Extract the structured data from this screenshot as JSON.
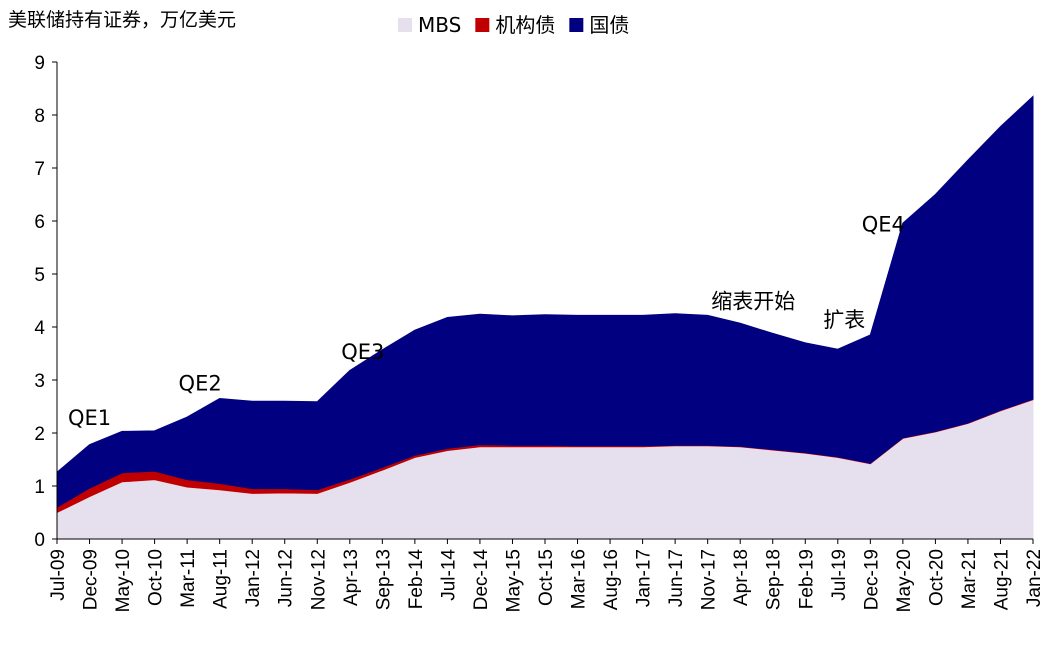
{
  "chart_data": {
    "type": "area",
    "stacked": true,
    "ylabel": "美联储持有证券，万亿美元",
    "ylim": [
      0,
      9
    ],
    "yticks": [
      "0",
      "1",
      "2",
      "3",
      "4",
      "5",
      "6",
      "7",
      "8",
      "9"
    ],
    "legend": {
      "placement": "top-center"
    },
    "grid": false,
    "xticks": [
      "Jul-09",
      "Dec-09",
      "May-10",
      "Oct-10",
      "Mar-11",
      "Aug-11",
      "Jan-12",
      "Jun-12",
      "Nov-12",
      "Apr-13",
      "Sep-13",
      "Feb-14",
      "Jul-14",
      "Dec-14",
      "May-15",
      "Oct-15",
      "Mar-16",
      "Aug-16",
      "Jan-17",
      "Jun-17",
      "Nov-17",
      "Apr-18",
      "Sep-18",
      "Feb-19",
      "Jul-19",
      "Dec-19",
      "May-20",
      "Oct-20",
      "Mar-21",
      "Aug-21",
      "Jan-22"
    ],
    "series": [
      {
        "name": "MBS",
        "color": "#e6e0ee",
        "values": [
          0.5,
          0.8,
          1.08,
          1.12,
          0.98,
          0.93,
          0.86,
          0.87,
          0.86,
          1.07,
          1.3,
          1.54,
          1.67,
          1.74,
          1.74,
          1.74,
          1.74,
          1.74,
          1.74,
          1.76,
          1.76,
          1.74,
          1.68,
          1.62,
          1.54,
          1.42,
          1.9,
          2.02,
          2.18,
          2.42,
          2.63
        ]
      },
      {
        "name": "机构债",
        "color": "#c00000",
        "values": [
          0.1,
          0.16,
          0.17,
          0.16,
          0.14,
          0.12,
          0.09,
          0.08,
          0.07,
          0.06,
          0.05,
          0.04,
          0.04,
          0.04,
          0.03,
          0.03,
          0.02,
          0.02,
          0.02,
          0.01,
          0.01,
          0.01,
          0.01,
          0.01,
          0.01,
          0.01,
          0.01,
          0.01,
          0.01,
          0.01,
          0.01
        ]
      },
      {
        "name": "国债",
        "color": "#000080",
        "values": [
          0.66,
          0.82,
          0.78,
          0.76,
          1.18,
          1.6,
          1.65,
          1.65,
          1.66,
          2.05,
          2.22,
          2.36,
          2.47,
          2.46,
          2.44,
          2.46,
          2.46,
          2.46,
          2.46,
          2.48,
          2.45,
          2.32,
          2.19,
          2.07,
          2.03,
          2.42,
          4.05,
          4.47,
          4.96,
          5.35,
          5.71
        ]
      }
    ],
    "annotations": [
      {
        "text": "QE1",
        "x": "Dec-09",
        "y": 2.15
      },
      {
        "text": "QE2",
        "x": "May-11",
        "y": 2.8
      },
      {
        "text": "QE3",
        "x": "Jun-13",
        "y": 3.4
      },
      {
        "text": "缩表开始",
        "x": "Jun-18",
        "y": 4.35
      },
      {
        "text": "扩表",
        "x": "Aug-19",
        "y": 4.0
      },
      {
        "text": "QE4",
        "x": "Feb-20",
        "y": 5.8
      }
    ]
  }
}
